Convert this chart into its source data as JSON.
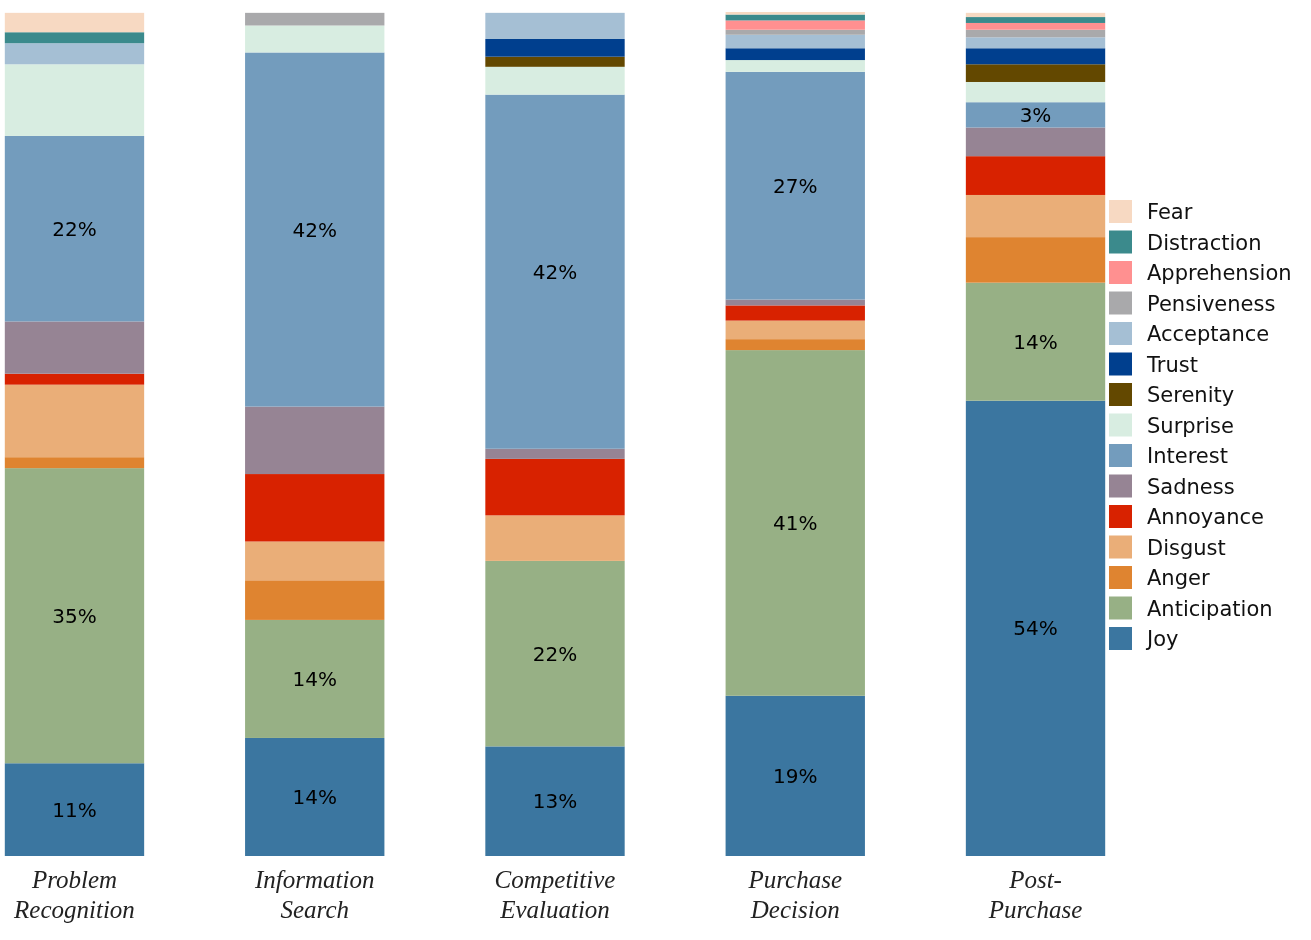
{
  "chart_data": {
    "type": "bar",
    "stacked": true,
    "legend": "right",
    "categories": [
      "Problem Recognition",
      "Information Search",
      "Competitive Evaluation",
      "Purchase Decision",
      "Post-Purchase"
    ],
    "series": [
      {
        "name": "Joy",
        "color": "#3b76a0",
        "values": [
          11,
          14,
          13,
          19,
          54
        ],
        "value_labels": [
          "11%",
          "14%",
          "13%",
          "19%",
          "54%"
        ]
      },
      {
        "name": "Anticipation",
        "color": "#97b085",
        "values": [
          35,
          14,
          22,
          41,
          14
        ],
        "value_labels": [
          "35%",
          "14%",
          "22%",
          "41%",
          "14%"
        ]
      },
      {
        "name": "Anger",
        "color": "#df8430",
        "values": [
          1.3,
          4.7,
          0,
          1.3,
          5.4
        ]
      },
      {
        "name": "Disgust",
        "color": "#eaae78",
        "values": [
          8.6,
          4.6,
          5.4,
          2.2,
          5.0
        ]
      },
      {
        "name": "Annoyance",
        "color": "#d82200",
        "values": [
          1.3,
          8.0,
          6.7,
          1.8,
          4.6
        ]
      },
      {
        "name": "Sadness",
        "color": "#968494",
        "values": [
          6.2,
          8.0,
          1.2,
          0.7,
          3.4
        ]
      },
      {
        "name": "Interest",
        "color": "#739cbd",
        "values": [
          22,
          42,
          42,
          27,
          3
        ],
        "value_labels": [
          "22%",
          "42%",
          "42%",
          "27%",
          "3%"
        ]
      },
      {
        "name": "Surprise",
        "color": "#d8ede1",
        "values": [
          8.5,
          3.2,
          3.3,
          1.4,
          2.4
        ]
      },
      {
        "name": "Serenity",
        "color": "#634800",
        "values": [
          0,
          0,
          1.2,
          0,
          2.1
        ]
      },
      {
        "name": "Trust",
        "color": "#003f8e",
        "values": [
          0,
          0,
          2.1,
          1.4,
          1.9
        ]
      },
      {
        "name": "Acceptance",
        "color": "#a5bfd4",
        "values": [
          2.5,
          0,
          3.1,
          1.6,
          1.3
        ]
      },
      {
        "name": "Pensiveness",
        "color": "#a9a9ab",
        "values": [
          0,
          1.5,
          0,
          0.6,
          0.9
        ]
      },
      {
        "name": "Apprehension",
        "color": "#ff9090",
        "values": [
          0,
          0,
          0,
          1.1,
          0.8
        ]
      },
      {
        "name": "Distraction",
        "color": "#3b8a8c",
        "values": [
          1.3,
          0,
          0,
          0.7,
          0.7
        ]
      },
      {
        "name": "Fear",
        "color": "#f7d9c2",
        "values": [
          2.3,
          0,
          0,
          0.3,
          0.5
        ]
      }
    ]
  }
}
